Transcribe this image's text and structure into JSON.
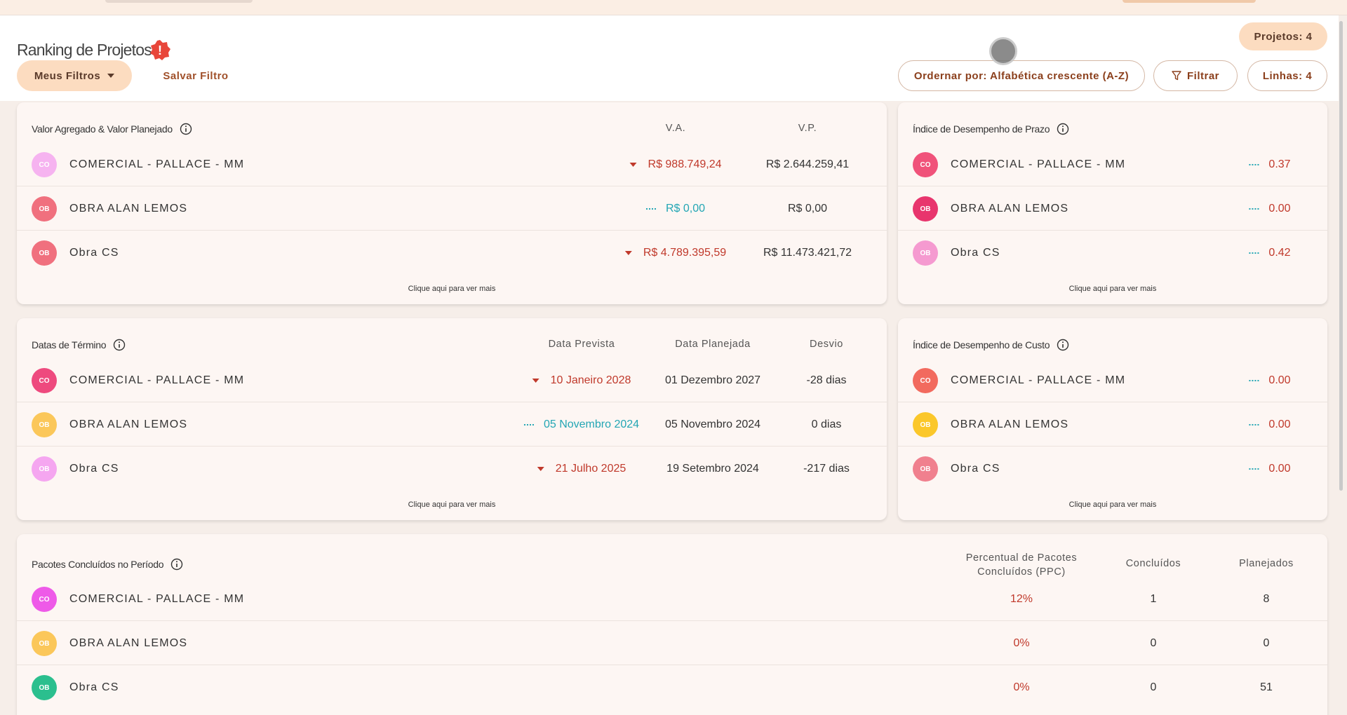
{
  "header": {
    "title": "Ranking de Projetos",
    "alert_symbol": "!",
    "projects_label": "Projetos: 4",
    "my_filters_label": "Meus Filtros",
    "save_filter_label": "Salvar Filtro",
    "order_label": "Ordernar por: Alfabética crescente (A-Z)",
    "filter_label": "Filtrar",
    "lines_label": "Linhas: 4"
  },
  "colors": {
    "accent": "#fcdcc0",
    "negative": "#c0392b",
    "neutral": "#23a6b4"
  },
  "more_label": "Clique aqui para ver mais",
  "valor_agregado": {
    "title": "Valor Agregado & Valor Planejado",
    "col_va": "V.A.",
    "col_vp": "V.P.",
    "rows": [
      {
        "initials": "CO",
        "name": "COMERCIAL - PALLACE - MM",
        "va": "R$ 988.749,24",
        "vp": "R$ 2.644.259,41",
        "trend": "down",
        "color": "#f6b3f0"
      },
      {
        "initials": "OB",
        "name": "OBRA ALAN LEMOS",
        "va": "R$ 0,00",
        "vp": "R$ 0,00",
        "trend": "flat",
        "color": "#f0707e"
      },
      {
        "initials": "OB",
        "name": "Obra CS",
        "va": "R$ 4.789.395,59",
        "vp": "R$ 11.473.421,72",
        "trend": "down",
        "color": "#f0707e"
      }
    ]
  },
  "idp": {
    "title": "Índice de Desempenho de Prazo",
    "rows": [
      {
        "initials": "CO",
        "name": "COMERCIAL - PALLACE - MM",
        "value": "0.37",
        "color": "#f0527a"
      },
      {
        "initials": "OB",
        "name": "OBRA ALAN LEMOS",
        "value": "0.00",
        "color": "#e8356d"
      },
      {
        "initials": "OB",
        "name": "Obra CS",
        "value": "0.42",
        "color": "#f59ad0"
      }
    ]
  },
  "datas": {
    "title": "Datas de Término",
    "col_prevista": "Data Prevista",
    "col_planejada": "Data Planejada",
    "col_desvio": "Desvio",
    "rows": [
      {
        "initials": "CO",
        "name": "COMERCIAL - PALLACE - MM",
        "prevista": "10 Janeiro 2028",
        "planejada": "01 Dezembro 2027",
        "desvio": "-28 dias",
        "trend": "down",
        "color": "#ee4a7e"
      },
      {
        "initials": "OB",
        "name": "OBRA ALAN LEMOS",
        "prevista": "05 Novembro 2024",
        "planejada": "05 Novembro 2024",
        "desvio": "0 dias",
        "trend": "flat",
        "color": "#fbc75a"
      },
      {
        "initials": "OB",
        "name": "Obra CS",
        "prevista": "21 Julho 2025",
        "planejada": "19 Setembro 2024",
        "desvio": "-217 dias",
        "trend": "down",
        "color": "#f5a6f0"
      }
    ]
  },
  "idc": {
    "title": "Índice de Desempenho de Custo",
    "rows": [
      {
        "initials": "CO",
        "name": "COMERCIAL - PALLACE - MM",
        "value": "0.00",
        "color": "#f26a5e"
      },
      {
        "initials": "OB",
        "name": "OBRA ALAN LEMOS",
        "value": "0.00",
        "color": "#fbc72a"
      },
      {
        "initials": "OB",
        "name": "Obra CS",
        "value": "0.00",
        "color": "#f0808e"
      }
    ]
  },
  "pacotes": {
    "title": "Pacotes Concluídos no Período",
    "col_ppc_1": "Percentual de Pacotes",
    "col_ppc_2": "Concluídos (PPC)",
    "col_concluidos": "Concluídos",
    "col_planejados": "Planejados",
    "rows": [
      {
        "initials": "CO",
        "name": "COMERCIAL - PALLACE - MM",
        "ppc": "12%",
        "concluidos": "1",
        "planejados": "8",
        "color": "#ee5ae8"
      },
      {
        "initials": "OB",
        "name": "OBRA ALAN LEMOS",
        "ppc": "0%",
        "concluidos": "0",
        "planejados": "0",
        "color": "#fbc75a"
      },
      {
        "initials": "OB",
        "name": "Obra CS",
        "ppc": "0%",
        "concluidos": "0",
        "planejados": "51",
        "color": "#2bbf8e"
      }
    ]
  }
}
